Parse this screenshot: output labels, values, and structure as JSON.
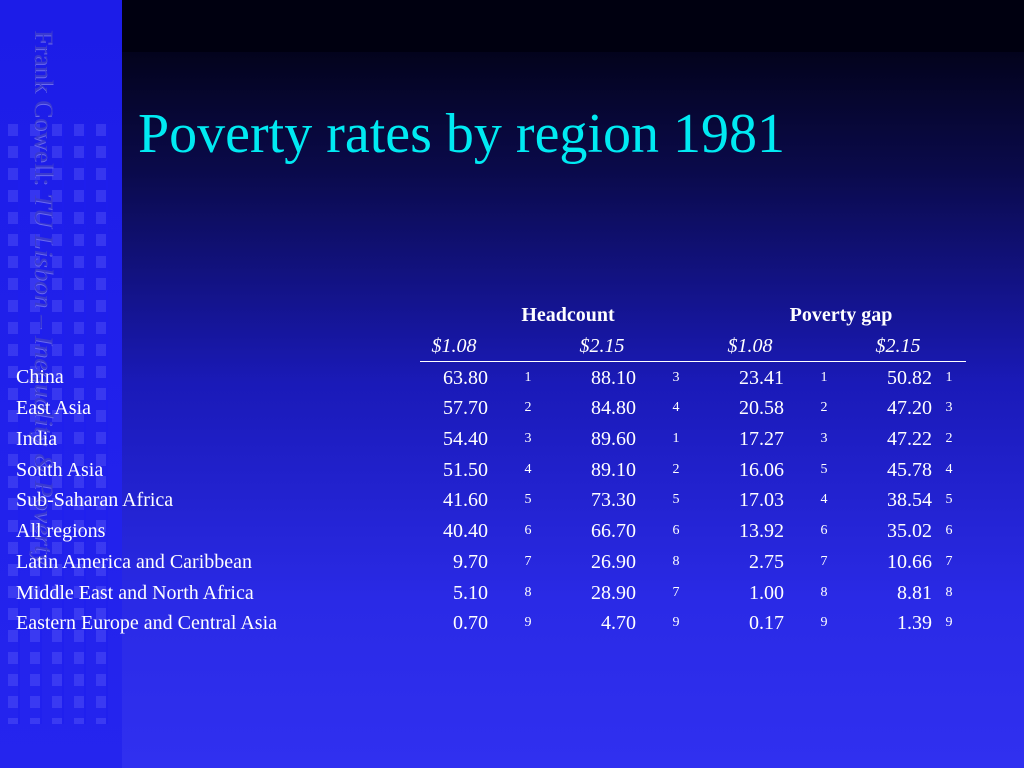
{
  "sidebar": {
    "author": "Frank Cowell: ",
    "course": "TU Lisbon – Inequality & Poverty"
  },
  "slide": {
    "title": "Poverty rates by region 1981"
  },
  "table": {
    "group_headers": [
      "Headcount",
      "Poverty gap"
    ],
    "sub_headers": [
      "$1.08",
      "$2.15",
      "$1.08",
      "$2.15"
    ],
    "rows": [
      {
        "region": "China",
        "hc108": "63.80",
        "hc108_rank": "1",
        "hc215": "88.10",
        "hc215_rank": "3",
        "pg108": "23.41",
        "pg108_rank": "1",
        "pg215": "50.82",
        "pg215_rank": "1"
      },
      {
        "region": "East Asia",
        "hc108": "57.70",
        "hc108_rank": "2",
        "hc215": "84.80",
        "hc215_rank": "4",
        "pg108": "20.58",
        "pg108_rank": "2",
        "pg215": "47.20",
        "pg215_rank": "3"
      },
      {
        "region": "India",
        "hc108": "54.40",
        "hc108_rank": "3",
        "hc215": "89.60",
        "hc215_rank": "1",
        "pg108": "17.27",
        "pg108_rank": "3",
        "pg215": "47.22",
        "pg215_rank": "2"
      },
      {
        "region": "South Asia",
        "hc108": "51.50",
        "hc108_rank": "4",
        "hc215": "89.10",
        "hc215_rank": "2",
        "pg108": "16.06",
        "pg108_rank": "5",
        "pg215": "45.78",
        "pg215_rank": "4"
      },
      {
        "region": "Sub-Saharan Africa",
        "hc108": "41.60",
        "hc108_rank": "5",
        "hc215": "73.30",
        "hc215_rank": "5",
        "pg108": "17.03",
        "pg108_rank": "4",
        "pg215": "38.54",
        "pg215_rank": "5"
      },
      {
        "region": "All regions",
        "hc108": "40.40",
        "hc108_rank": "6",
        "hc215": "66.70",
        "hc215_rank": "6",
        "pg108": "13.92",
        "pg108_rank": "6",
        "pg215": "35.02",
        "pg215_rank": "6"
      },
      {
        "region": "Latin America and Caribbean",
        "hc108": "9.70",
        "hc108_rank": "7",
        "hc215": "26.90",
        "hc215_rank": "8",
        "pg108": "2.75",
        "pg108_rank": "7",
        "pg215": "10.66",
        "pg215_rank": "7"
      },
      {
        "region": "Middle East and North Africa",
        "hc108": "5.10",
        "hc108_rank": "8",
        "hc215": "28.90",
        "hc215_rank": "7",
        "pg108": "1.00",
        "pg108_rank": "8",
        "pg215": "8.81",
        "pg215_rank": "8"
      },
      {
        "region": "Eastern Europe and Central Asia",
        "hc108": "0.70",
        "hc108_rank": "9",
        "hc215": "4.70",
        "hc215_rank": "9",
        "pg108": "0.17",
        "pg108_rank": "9",
        "pg215": "1.39",
        "pg215_rank": "9"
      }
    ]
  },
  "colors": {
    "title": "#00eaf2",
    "text": "#ffffff",
    "background_top": "#000008",
    "background_bottom": "#3030f0",
    "sidebar": "#2222ee"
  }
}
